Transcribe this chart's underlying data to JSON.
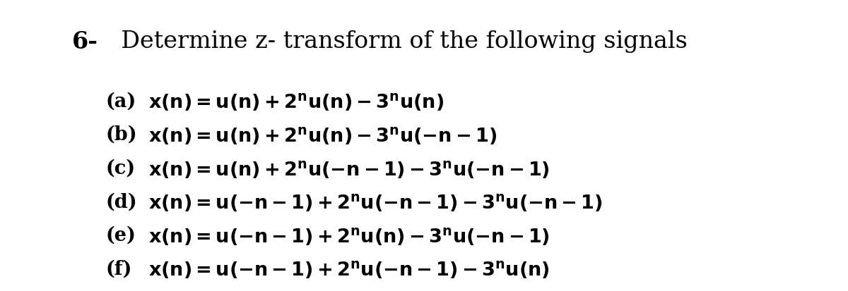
{
  "background_color": "#ffffff",
  "title_number": "6-",
  "title_text": "  Determine z- transform of the following signals",
  "title_fontsize": 24,
  "title_fontweight": "bold",
  "eq_fontsize": 19.5,
  "lines": [
    {
      "label": "(a)",
      "eq": "$\\mathbf{x(n) = u(n) + 2^nu(n) - 3^nu(n)}$"
    },
    {
      "label": "(b)",
      "eq": "$\\mathbf{x(n) = u(n) + 2^nu(n) - 3^nu(-n-1)}$"
    },
    {
      "label": "(c)",
      "eq": "$\\mathbf{x(n) = u(n) + 2^nu(-n-1) - 3^nu(-n-1)}$"
    },
    {
      "label": "(d)",
      "eq": "$\\mathbf{x(n) = u(-n-1) + 2^nu(-n-1) - 3^nu(-n-1)}$"
    },
    {
      "label": "(e)",
      "eq": "$\\mathbf{x(n) = u(-n-1) + 2^nu(n) - 3^nu(-n-1)}$"
    },
    {
      "label": "(f)",
      "eq": "$\\mathbf{x(n) = u(-n-1) + 2^nu(-n-1) - 3^nu(n)}$"
    }
  ]
}
